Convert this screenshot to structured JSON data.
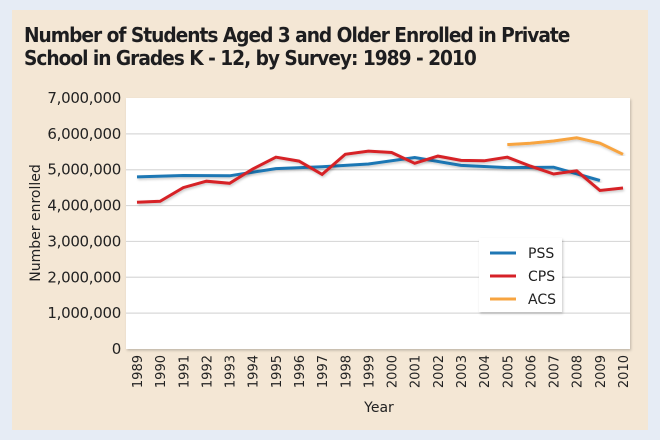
{
  "chart_data": {
    "type": "line",
    "title": "Number of Students Aged 3 and Older Enrolled in Private School in Grades K - 12, by Survey: 1989 - 2010",
    "xlabel": "Year",
    "ylabel": "Number enrolled",
    "ylim": [
      0,
      7000000
    ],
    "yticks": [
      0,
      1000000,
      2000000,
      3000000,
      4000000,
      5000000,
      6000000,
      7000000
    ],
    "ytick_labels": [
      "0",
      "1,000,000",
      "2,000,000",
      "3,000,000",
      "4,000,000",
      "5,000,000",
      "6,000,000",
      "7,000,000"
    ],
    "x": [
      1989,
      1990,
      1991,
      1992,
      1993,
      1994,
      1995,
      1996,
      1997,
      1998,
      1999,
      2000,
      2001,
      2002,
      2003,
      2004,
      2005,
      2006,
      2007,
      2008,
      2009,
      2010
    ],
    "xtick_labels": [
      "1989",
      "1990",
      "1991",
      "1992",
      "1993",
      "1994",
      "1995",
      "1996",
      "1997",
      "1998",
      "1999",
      "2000",
      "2001",
      "2002",
      "2003",
      "2004",
      "2005",
      "2006",
      "2007",
      "2008",
      "2009",
      "2010"
    ],
    "grid": true,
    "legend_position": "lower-right",
    "series": [
      {
        "name": "PSS",
        "color": "#1f77b4",
        "points": [
          [
            1989,
            4800000
          ],
          [
            1991,
            4840000
          ],
          [
            1993,
            4830000
          ],
          [
            1995,
            5030000
          ],
          [
            1997,
            5080000
          ],
          [
            1999,
            5160000
          ],
          [
            2001,
            5340000
          ],
          [
            2003,
            5120000
          ],
          [
            2005,
            5060000
          ],
          [
            2007,
            5070000
          ],
          [
            2009,
            4700000
          ]
        ]
      },
      {
        "name": "CPS",
        "color": "#d62027",
        "points": [
          [
            1989,
            4090000
          ],
          [
            1990,
            4120000
          ],
          [
            1991,
            4500000
          ],
          [
            1992,
            4680000
          ],
          [
            1993,
            4620000
          ],
          [
            1994,
            5020000
          ],
          [
            1995,
            5350000
          ],
          [
            1996,
            5240000
          ],
          [
            1997,
            4870000
          ],
          [
            1998,
            5430000
          ],
          [
            1999,
            5520000
          ],
          [
            2000,
            5480000
          ],
          [
            2001,
            5180000
          ],
          [
            2002,
            5380000
          ],
          [
            2003,
            5260000
          ],
          [
            2004,
            5250000
          ],
          [
            2005,
            5350000
          ],
          [
            2006,
            5100000
          ],
          [
            2007,
            4880000
          ],
          [
            2008,
            4970000
          ],
          [
            2009,
            4420000
          ],
          [
            2010,
            4490000
          ]
        ]
      },
      {
        "name": "ACS",
        "color": "#f7a440",
        "points": [
          [
            2005,
            5700000
          ],
          [
            2006,
            5740000
          ],
          [
            2007,
            5800000
          ],
          [
            2008,
            5890000
          ],
          [
            2009,
            5740000
          ],
          [
            2010,
            5430000
          ]
        ]
      }
    ]
  },
  "header": {
    "title_line1": "Number of Students Aged 3 and Older Enrolled in Private",
    "title_line2": "School in Grades K - 12, by Survey: 1989 - 2010"
  }
}
